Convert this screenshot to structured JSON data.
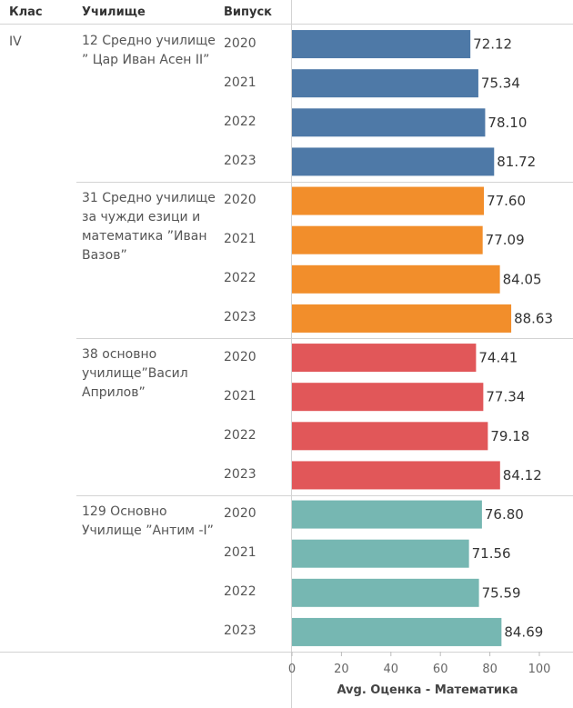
{
  "headers": {
    "klas": "Клас",
    "uchilishte": "Училище",
    "vipusk": "Випуск"
  },
  "klas_value": "IV",
  "colors": {
    "school1": "#4e79a7",
    "school2": "#f28e2b",
    "school3": "#e15759",
    "school4": "#76b7b2"
  },
  "chart_data": {
    "type": "bar",
    "orientation": "horizontal",
    "title": "",
    "xlabel": "Avg. Оценка - Математика",
    "xlim": [
      0,
      100
    ],
    "x_ticks": [
      "0",
      "20",
      "40",
      "60",
      "80",
      "100"
    ],
    "grid": false,
    "groups": [
      {
        "school": "12 Средно училище ” Цар Иван Асен II”",
        "years": [
          "2020",
          "2021",
          "2022",
          "2023"
        ],
        "values": [
          72.12,
          75.34,
          78.1,
          81.72
        ],
        "labels": [
          "72.12",
          "75.34",
          "78.10",
          "81.72"
        ]
      },
      {
        "school": "31 Средно училище за чужди езици и математика ”Иван Вазов”",
        "years": [
          "2020",
          "2021",
          "2022",
          "2023"
        ],
        "values": [
          77.6,
          77.09,
          84.05,
          88.63
        ],
        "labels": [
          "77.60",
          "77.09",
          "84.05",
          "88.63"
        ]
      },
      {
        "school": "38 основно училище”Васил Априлов”",
        "years": [
          "2020",
          "2021",
          "2022",
          "2023"
        ],
        "values": [
          74.41,
          77.34,
          79.18,
          84.12
        ],
        "labels": [
          "74.41",
          "77.34",
          "79.18",
          "84.12"
        ]
      },
      {
        "school": "129 Основно Училище ”Антим -I”",
        "years": [
          "2020",
          "2021",
          "2022",
          "2023"
        ],
        "values": [
          76.8,
          71.56,
          75.59,
          84.69
        ],
        "labels": [
          "76.80",
          "71.56",
          "75.59",
          "84.69"
        ]
      }
    ]
  }
}
